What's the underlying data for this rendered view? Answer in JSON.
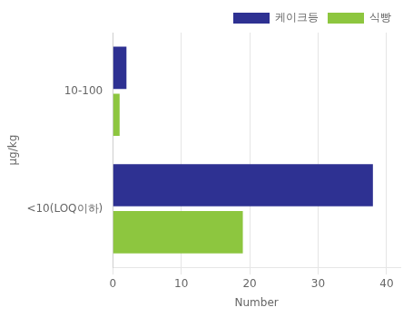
{
  "chart_data": {
    "type": "bar",
    "orientation": "horizontal",
    "categories": [
      "10-100",
      "<10(LOQ이하)"
    ],
    "series": [
      {
        "name": "케이크등",
        "values": [
          2,
          38
        ],
        "color": "#2E3192"
      },
      {
        "name": "식빵",
        "values": [
          1,
          19
        ],
        "color": "#8DC63F"
      }
    ],
    "xlabel": "Number",
    "ylabel": "μg/kg",
    "xlim": [
      0,
      42
    ],
    "xticks": [
      0,
      10,
      20,
      30,
      40
    ],
    "grid": true,
    "legend": "upper right"
  }
}
